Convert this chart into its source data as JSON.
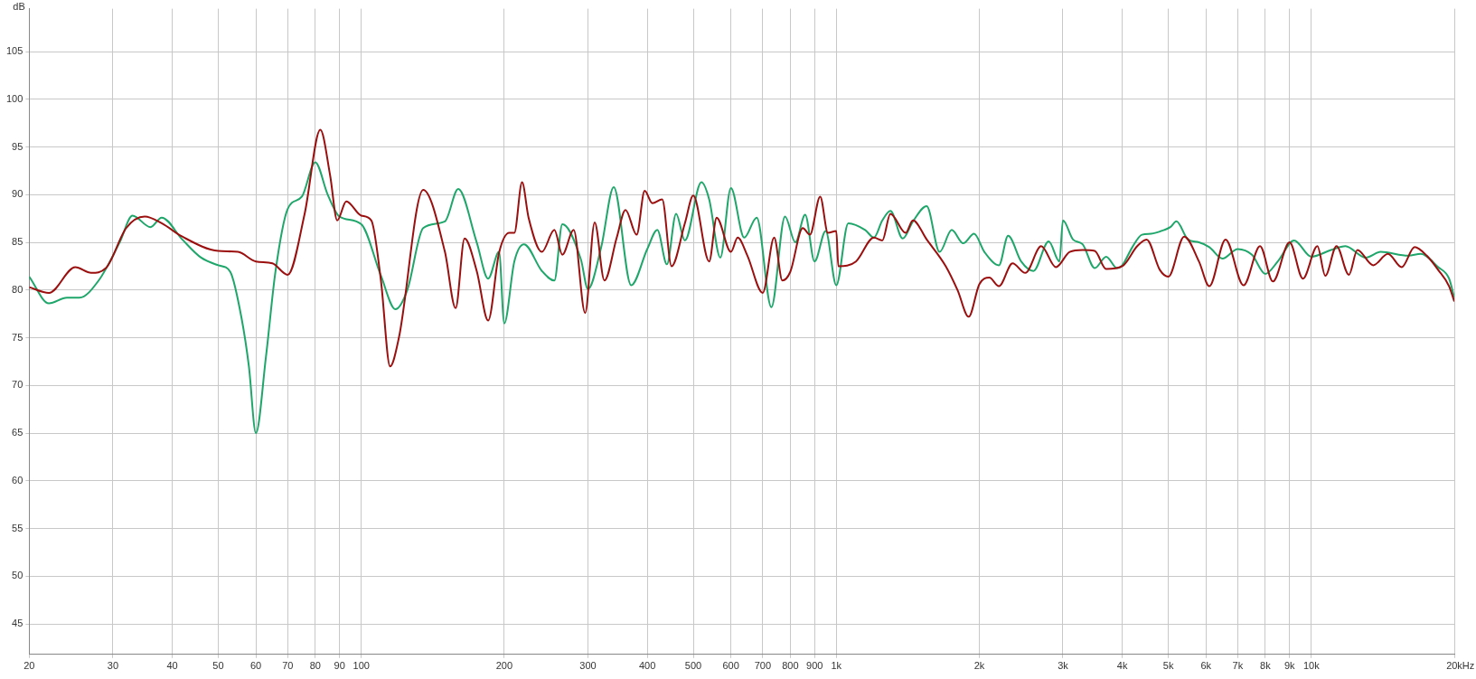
{
  "chart_data": {
    "type": "line",
    "ylabel": "dB",
    "log": "x",
    "grid": true,
    "marker": "none",
    "xlim": [
      20,
      20000
    ],
    "ylim": [
      41.8,
      109.5
    ],
    "xticks": [
      20,
      30,
      40,
      50,
      60,
      70,
      80,
      90,
      100,
      200,
      300,
      400,
      500,
      600,
      700,
      800,
      900,
      {
        "value": 1000,
        "label": "1k"
      },
      {
        "value": 2000,
        "label": "2k"
      },
      {
        "value": 3000,
        "label": "3k"
      },
      {
        "value": 4000,
        "label": "4k"
      },
      {
        "value": 5000,
        "label": "5k"
      },
      {
        "value": 6000,
        "label": "6k"
      },
      {
        "value": 7000,
        "label": "7k"
      },
      {
        "value": 8000,
        "label": "8k"
      },
      {
        "value": 9000,
        "label": "9k"
      },
      {
        "value": 10000,
        "label": "10k"
      },
      {
        "value": 20000,
        "label": "20k"
      }
    ],
    "xlabel": "Hz",
    "yticks": [
      45,
      50,
      55,
      60,
      65,
      70,
      75,
      80,
      85,
      90,
      95,
      100,
      105
    ],
    "series": [
      {
        "color": "#9b0f0f",
        "x": [
          20,
          22,
          25,
          27,
          29,
          32,
          35,
          38,
          42,
          50,
          55,
          60,
          65,
          70,
          76,
          82,
          86,
          89,
          93,
          100,
          105,
          110,
          115,
          120,
          135,
          150,
          158,
          165,
          175,
          185,
          195,
          205,
          210,
          218,
          225,
          240,
          255,
          265,
          280,
          296,
          310,
          325,
          345,
          360,
          380,
          395,
          410,
          430,
          450,
          480,
          500,
          540,
          560,
          600,
          620,
          650,
          700,
          740,
          770,
          800,
          850,
          880,
          925,
          960,
          1000,
          1010,
          1100,
          1200,
          1250,
          1300,
          1400,
          1450,
          1550,
          1700,
          1800,
          1900,
          2000,
          2100,
          2200,
          2350,
          2500,
          2700,
          2900,
          3100,
          3300,
          3500,
          3700,
          4000,
          4300,
          4500,
          4800,
          5000,
          5400,
          5800,
          6100,
          6600,
          7200,
          7800,
          8300,
          9000,
          9600,
          10300,
          10700,
          11300,
          12000,
          12500,
          13500,
          14500,
          15500,
          16500,
          17500,
          18500,
          19500,
          20000
        ],
        "values": [
          80.3,
          79.7,
          82.4,
          81.8,
          82.3,
          86.5,
          87.7,
          87,
          85.6,
          84.1,
          84,
          83,
          82.8,
          81.6,
          88,
          96.8,
          92,
          87.3,
          89.3,
          87.8,
          87.3,
          81,
          72,
          75,
          90.5,
          84,
          78.1,
          85.4,
          82,
          76.8,
          83.9,
          86,
          86,
          91.3,
          87.6,
          84,
          86.3,
          83.7,
          86.3,
          77.6,
          87.1,
          81,
          85.5,
          88.4,
          85.8,
          90.4,
          89.1,
          89.5,
          82.5,
          87,
          89.9,
          83,
          87.6,
          84,
          85.5,
          83.6,
          79.7,
          85.5,
          81,
          81.9,
          86.5,
          85.8,
          89.8,
          86,
          86.2,
          82.5,
          83,
          85.5,
          85.2,
          88,
          86,
          87.3,
          85.3,
          82.5,
          80,
          77.2,
          80.6,
          81.3,
          80.4,
          82.8,
          81.8,
          84.6,
          82.4,
          84,
          84.2,
          84.1,
          82.2,
          82.5,
          84.6,
          85.3,
          82.1,
          81.4,
          85.6,
          83,
          80.4,
          85.3,
          80.5,
          84.6,
          80.9,
          85,
          81.2,
          84.6,
          81.5,
          84.6,
          81.6,
          84.2,
          82.6,
          83.8,
          82.4,
          84.5,
          83.6,
          82.1,
          80.4,
          78.8
        ]
      },
      {
        "color": "#1fa66b",
        "x": [
          20,
          22,
          24,
          25.5,
          28,
          31,
          33,
          36,
          38,
          42,
          46,
          50,
          53,
          56,
          58,
          60,
          63,
          66,
          70,
          75,
          80,
          85,
          90,
          100,
          110,
          118,
          125,
          135,
          150,
          160,
          175,
          185,
          195,
          200,
          210,
          220,
          240,
          255,
          265,
          290,
          300,
          320,
          340,
          370,
          400,
          420,
          440,
          460,
          480,
          520,
          540,
          570,
          600,
          640,
          680,
          730,
          780,
          820,
          860,
          900,
          950,
          1000,
          1060,
          1150,
          1200,
          1250,
          1300,
          1380,
          1450,
          1550,
          1650,
          1750,
          1850,
          1950,
          2050,
          2200,
          2300,
          2450,
          2600,
          2800,
          2950,
          3000,
          3150,
          3300,
          3500,
          3700,
          3900,
          4000,
          4200,
          4400,
          4600,
          4900,
          5050,
          5200,
          5500,
          5800,
          6100,
          6500,
          7000,
          7500,
          8000,
          8500,
          9200,
          10000,
          11000,
          11800,
          13000,
          14000,
          16000,
          17000,
          18500,
          19500,
          20000
        ],
        "values": [
          81.4,
          78.6,
          79.2,
          79.2,
          81,
          85,
          87.8,
          86.6,
          87.6,
          85.3,
          83.4,
          82.6,
          81.9,
          77,
          72,
          65,
          73,
          82,
          88.5,
          89.8,
          93.4,
          90,
          87.7,
          86.9,
          81.5,
          78,
          80,
          86.5,
          87.2,
          90.6,
          85,
          81.2,
          84,
          76.5,
          83,
          84.8,
          82,
          81,
          86.9,
          83.2,
          80.1,
          84.5,
          90.8,
          80.5,
          84.3,
          86.3,
          82.7,
          88,
          85.2,
          91.3,
          89.5,
          83.4,
          90.7,
          85.5,
          87.6,
          78.2,
          87.7,
          85,
          87.9,
          83,
          86.2,
          80.5,
          87,
          86.3,
          85.5,
          87.3,
          88.3,
          85.4,
          87.2,
          88.8,
          84,
          86.3,
          84.9,
          85.9,
          84,
          82.6,
          85.7,
          83,
          82,
          85.1,
          83,
          87.3,
          85.3,
          84.8,
          82.3,
          83.5,
          82.3,
          82.6,
          84.5,
          85.8,
          85.9,
          86.3,
          86.6,
          87.2,
          85.3,
          85,
          84.5,
          83.3,
          84.3,
          83.7,
          81.7,
          83,
          85.2,
          83.5,
          84.2,
          84.6,
          83.4,
          84,
          83.6,
          83.8,
          82.4,
          81.2,
          79.2
        ]
      }
    ]
  }
}
